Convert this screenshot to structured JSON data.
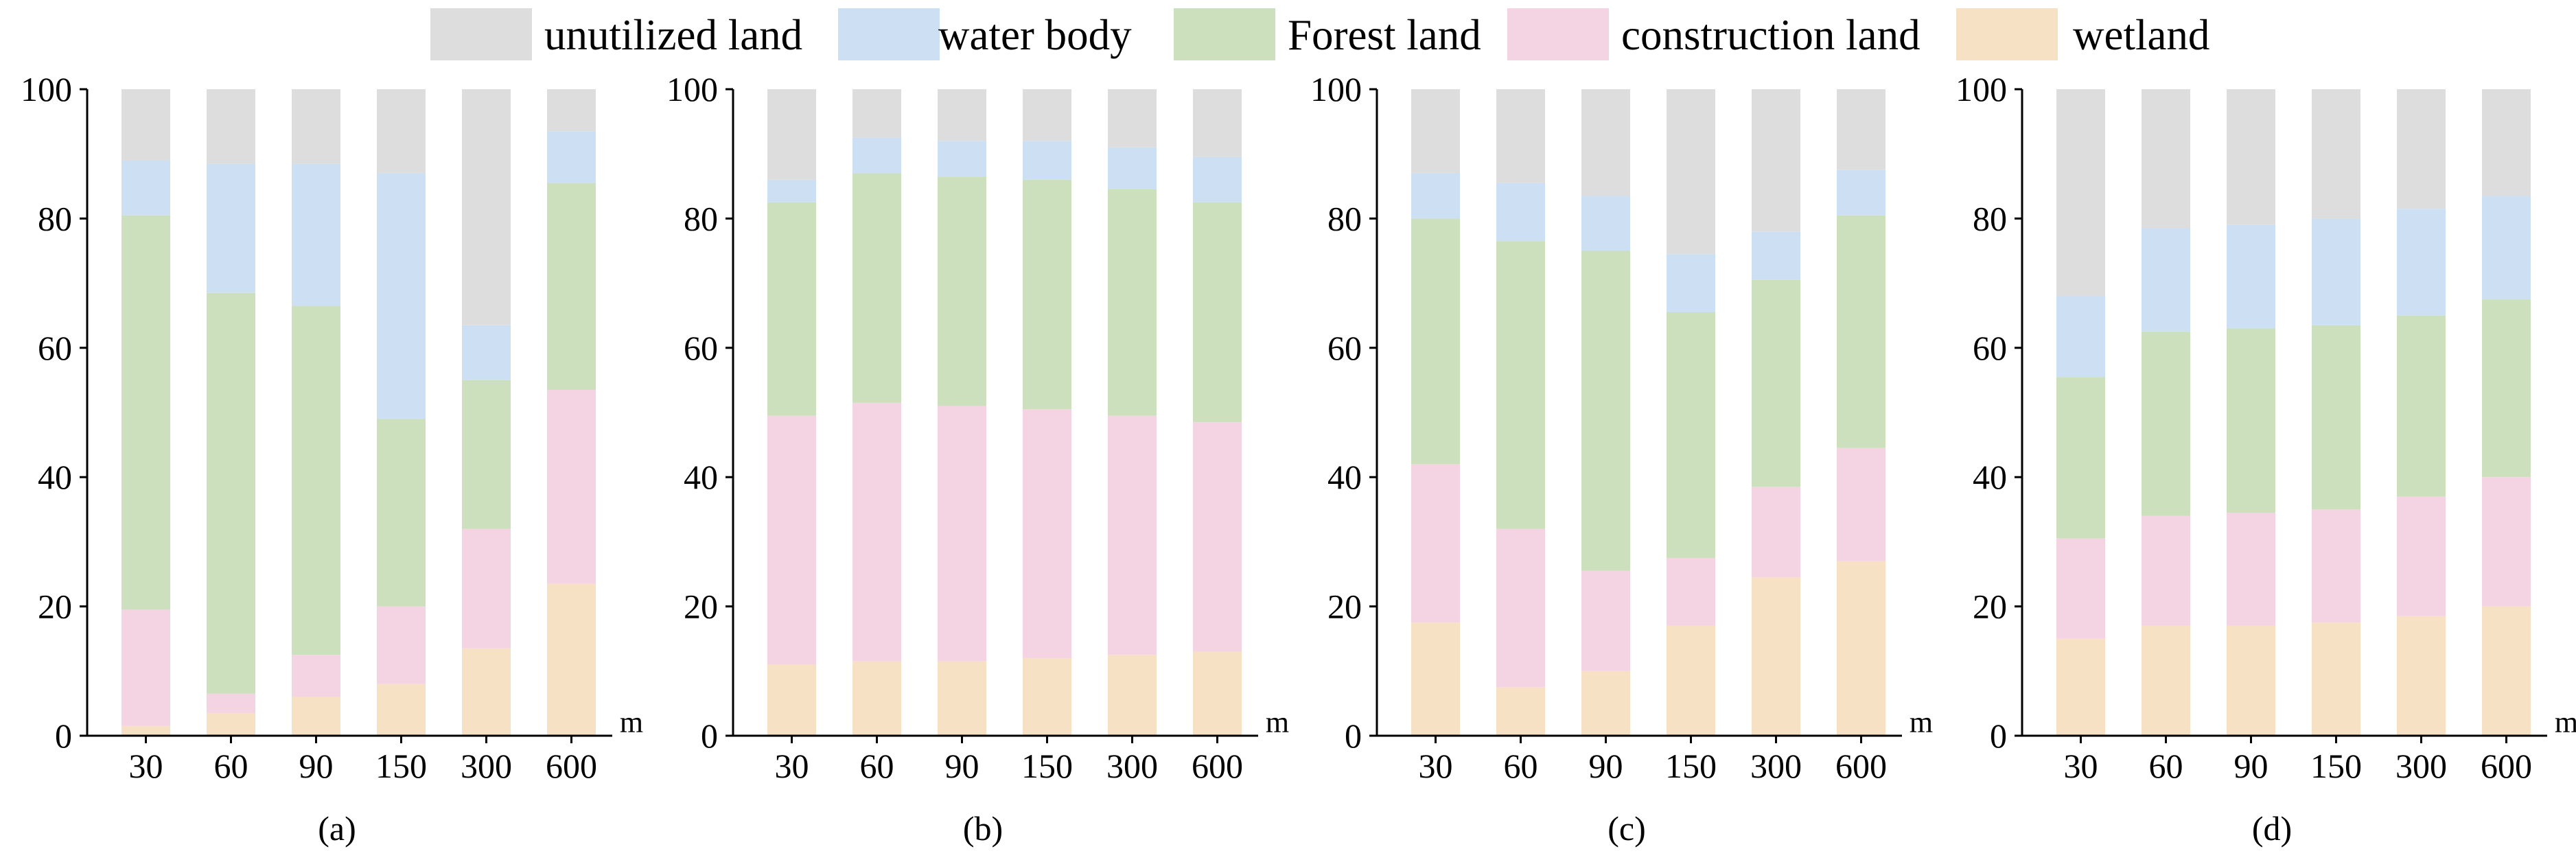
{
  "legend": [
    {
      "key": "unutilized",
      "label": "unutilized land",
      "color": "#dddddd"
    },
    {
      "key": "water",
      "label": "water body",
      "color": "#cde0f3"
    },
    {
      "key": "forest",
      "label": "Forest land",
      "color": "#cce0bd"
    },
    {
      "key": "construction",
      "label": "construction land",
      "color": "#f4d4e3"
    },
    {
      "key": "wetland",
      "label": "wetland",
      "color": "#f7e1c4"
    }
  ],
  "chart_data": [
    {
      "type": "bar",
      "stacked": true,
      "panel": "(a)",
      "categories": [
        "30",
        "60",
        "90",
        "150",
        "300",
        "600"
      ],
      "unit": "m",
      "ylim": [
        0,
        100
      ],
      "yticks": [
        0,
        20,
        40,
        60,
        80,
        100
      ],
      "series": [
        {
          "name": "wetland",
          "values": [
            1.5,
            3.5,
            6,
            8,
            13.5,
            23.5
          ]
        },
        {
          "name": "construction land",
          "values": [
            18,
            3,
            6.5,
            12,
            18.5,
            30
          ]
        },
        {
          "name": "Forest land",
          "values": [
            61,
            62,
            54,
            29,
            23,
            32
          ]
        },
        {
          "name": "water body",
          "values": [
            8.5,
            20,
            22,
            38,
            8.5,
            8
          ]
        },
        {
          "name": "unutilized land",
          "values": [
            11,
            11.5,
            11.5,
            13,
            36.5,
            6.5
          ]
        }
      ]
    },
    {
      "type": "bar",
      "stacked": true,
      "panel": "(b)",
      "categories": [
        "30",
        "60",
        "90",
        "150",
        "300",
        "600"
      ],
      "unit": "m",
      "ylim": [
        0,
        100
      ],
      "yticks": [
        0,
        20,
        40,
        60,
        80,
        100
      ],
      "series": [
        {
          "name": "wetland",
          "values": [
            11,
            11.5,
            11.5,
            12,
            12.5,
            13
          ]
        },
        {
          "name": "construction land",
          "values": [
            38.5,
            40,
            39.5,
            38.5,
            37,
            35.5
          ]
        },
        {
          "name": "Forest land",
          "values": [
            33,
            35.5,
            35.5,
            35.5,
            35,
            34
          ]
        },
        {
          "name": "water body",
          "values": [
            3.5,
            5.5,
            5.5,
            6,
            6.5,
            7
          ]
        },
        {
          "name": "unutilized land",
          "values": [
            14,
            7.5,
            8,
            8,
            9,
            10.5
          ]
        }
      ]
    },
    {
      "type": "bar",
      "stacked": true,
      "panel": "(c)",
      "categories": [
        "30",
        "60",
        "90",
        "150",
        "300",
        "600"
      ],
      "unit": "m",
      "ylim": [
        0,
        100
      ],
      "yticks": [
        0,
        20,
        40,
        60,
        80,
        100
      ],
      "series": [
        {
          "name": "wetland",
          "values": [
            17.5,
            7.5,
            10,
            17,
            24.5,
            27
          ]
        },
        {
          "name": "construction land",
          "values": [
            24.5,
            24.5,
            15.5,
            10.5,
            14,
            17.5
          ]
        },
        {
          "name": "Forest land",
          "values": [
            38,
            44.5,
            49.5,
            38,
            32,
            36
          ]
        },
        {
          "name": "water body",
          "values": [
            7,
            9,
            8.5,
            9,
            7.5,
            7
          ]
        },
        {
          "name": "unutilized land",
          "values": [
            13,
            14.5,
            16.5,
            25.5,
            22,
            12.5
          ]
        }
      ]
    },
    {
      "type": "bar",
      "stacked": true,
      "panel": "(d)",
      "categories": [
        "30",
        "60",
        "90",
        "150",
        "300",
        "600"
      ],
      "unit": "m",
      "ylim": [
        0,
        100
      ],
      "yticks": [
        0,
        20,
        40,
        60,
        80,
        100
      ],
      "series": [
        {
          "name": "wetland",
          "values": [
            15,
            17,
            17,
            17.5,
            18.5,
            20
          ]
        },
        {
          "name": "construction land",
          "values": [
            15.5,
            17,
            17.5,
            17.5,
            18.5,
            20
          ]
        },
        {
          "name": "Forest land",
          "values": [
            25,
            28.5,
            28.5,
            28.5,
            28,
            27.5
          ]
        },
        {
          "name": "water body",
          "values": [
            12.5,
            16,
            16,
            16.5,
            16.5,
            16
          ]
        },
        {
          "name": "unutilized land",
          "values": [
            32,
            21.5,
            21,
            20,
            18.5,
            16.5
          ]
        }
      ]
    }
  ]
}
